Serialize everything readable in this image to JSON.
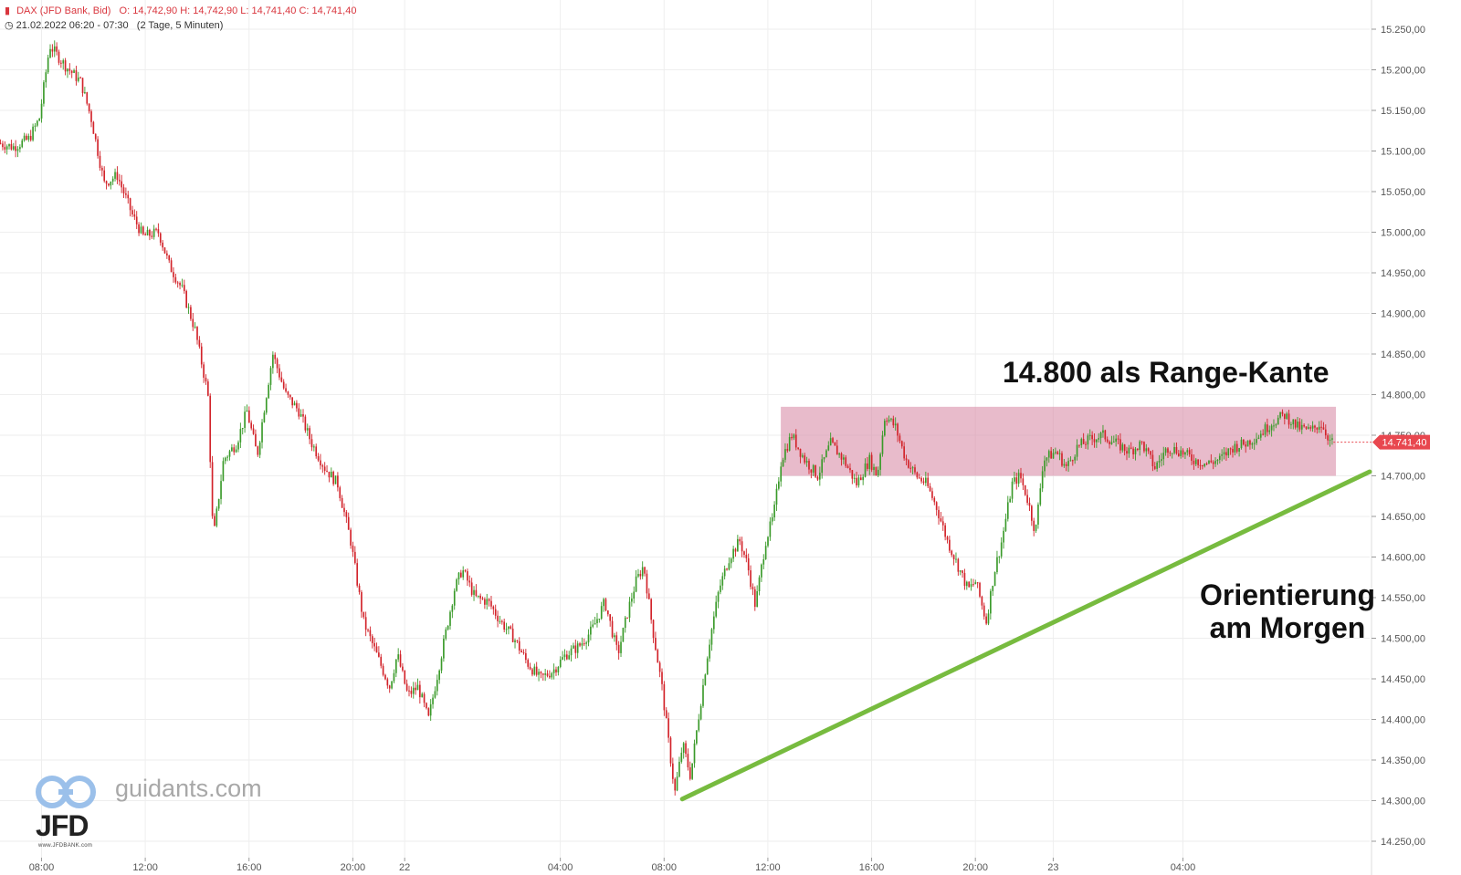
{
  "header": {
    "instrument": "DAX (JFD Bank, Bid)",
    "ohlc": "O: 14,742,90  H: 14,742,90  L: 14,741,40  C: 14,741,40",
    "period": "21.02.2022 06:20 - 07:30",
    "interval": "(2 Tage, 5 Minuten)"
  },
  "annotations": {
    "range_label": "14.800 als Range-Kante",
    "orientation_line1": "Orientierung",
    "orientation_line2": "am Morgen"
  },
  "watermark": {
    "site": "guidants.com",
    "brand": "JFD",
    "brand_sub": "www.JFDBANK.com"
  },
  "colors": {
    "up": "#3a9a2a",
    "down": "#d2232a",
    "grid": "#eeeeee",
    "axis_text": "#555555",
    "range_fill": "#d88aa6",
    "trendline": "#77bb3f",
    "last_price_bg": "#e8474f"
  },
  "chart_data": {
    "type": "candlestick",
    "title": "DAX (JFD Bank, Bid)",
    "interval": "5 Minuten",
    "last_price": 14741.4,
    "last_price_label": "14.741,40",
    "y_axis": {
      "min": 14250,
      "max": 15250,
      "ticks": [
        15250,
        15200,
        15150,
        15100,
        15050,
        15000,
        14950,
        14900,
        14850,
        14800,
        14750,
        14700,
        14650,
        14600,
        14550,
        14500,
        14450,
        14400,
        14350,
        14300,
        14250
      ],
      "tick_labels": [
        "15.250,00",
        "15.200,00",
        "15.150,00",
        "15.100,00",
        "15.050,00",
        "15.000,00",
        "14.950,00",
        "14.900,00",
        "14.850,00",
        "14.800,00",
        "14.750,00",
        "14.700,00",
        "14.650,00",
        "14.600,00",
        "14.550,00",
        "14.500,00",
        "14.450,00",
        "14.400,00",
        "14.350,00",
        "14.300,00",
        "14.250,00"
      ]
    },
    "x_axis": {
      "labels": [
        "08:00",
        "12:00",
        "16:00",
        "20:00",
        "22",
        "04:00",
        "08:00",
        "12:00",
        "16:00",
        "20:00",
        "23",
        "04:00"
      ],
      "label_hours": [
        8,
        12,
        16,
        20,
        22,
        28,
        32,
        36,
        40,
        44,
        47,
        52
      ],
      "start_hour": 6.4,
      "end_hour": 59.2
    },
    "price_path": [
      [
        6.4,
        15110
      ],
      [
        7.0,
        15105
      ],
      [
        7.6,
        15115
      ],
      [
        8.0,
        15140
      ],
      [
        8.4,
        15230
      ],
      [
        9.0,
        15205
      ],
      [
        9.6,
        15185
      ],
      [
        10.0,
        15140
      ],
      [
        10.5,
        15060
      ],
      [
        11.0,
        15070
      ],
      [
        11.6,
        15020
      ],
      [
        12.0,
        14995
      ],
      [
        12.6,
        15000
      ],
      [
        13.0,
        14960
      ],
      [
        13.5,
        14930
      ],
      [
        14.0,
        14880
      ],
      [
        14.5,
        14800
      ],
      [
        14.7,
        14620
      ],
      [
        15.1,
        14720
      ],
      [
        15.6,
        14740
      ],
      [
        16.0,
        14780
      ],
      [
        16.4,
        14725
      ],
      [
        16.7,
        14790
      ],
      [
        17.0,
        14850
      ],
      [
        17.5,
        14800
      ],
      [
        18.0,
        14780
      ],
      [
        18.5,
        14740
      ],
      [
        19.0,
        14710
      ],
      [
        19.5,
        14690
      ],
      [
        20.0,
        14620
      ],
      [
        20.5,
        14520
      ],
      [
        21.0,
        14480
      ],
      [
        21.5,
        14440
      ],
      [
        21.8,
        14480
      ],
      [
        22.2,
        14430
      ],
      [
        22.6,
        14440
      ],
      [
        23.0,
        14400
      ],
      [
        23.5,
        14480
      ],
      [
        24.0,
        14560
      ],
      [
        24.3,
        14585
      ],
      [
        24.8,
        14550
      ],
      [
        25.3,
        14545
      ],
      [
        25.8,
        14520
      ],
      [
        26.3,
        14500
      ],
      [
        26.8,
        14470
      ],
      [
        27.3,
        14450
      ],
      [
        27.8,
        14460
      ],
      [
        28.3,
        14480
      ],
      [
        28.8,
        14490
      ],
      [
        29.3,
        14510
      ],
      [
        29.8,
        14545
      ],
      [
        30.3,
        14480
      ],
      [
        30.7,
        14535
      ],
      [
        31.0,
        14570
      ],
      [
        31.3,
        14590
      ],
      [
        31.6,
        14520
      ],
      [
        32.0,
        14440
      ],
      [
        32.3,
        14360
      ],
      [
        32.5,
        14310
      ],
      [
        32.8,
        14370
      ],
      [
        33.1,
        14330
      ],
      [
        33.4,
        14400
      ],
      [
        33.8,
        14490
      ],
      [
        34.2,
        14560
      ],
      [
        34.6,
        14600
      ],
      [
        35.0,
        14620
      ],
      [
        35.3,
        14590
      ],
      [
        35.6,
        14540
      ],
      [
        36.0,
        14620
      ],
      [
        36.3,
        14650
      ],
      [
        36.6,
        14720
      ],
      [
        37.0,
        14750
      ],
      [
        37.5,
        14720
      ],
      [
        38.0,
        14700
      ],
      [
        38.5,
        14740
      ],
      [
        39.0,
        14720
      ],
      [
        39.5,
        14690
      ],
      [
        40.0,
        14720
      ],
      [
        40.3,
        14700
      ],
      [
        40.6,
        14775
      ],
      [
        41.0,
        14760
      ],
      [
        41.4,
        14720
      ],
      [
        41.8,
        14700
      ],
      [
        42.2,
        14690
      ],
      [
        42.6,
        14660
      ],
      [
        43.0,
        14620
      ],
      [
        43.4,
        14590
      ],
      [
        43.8,
        14560
      ],
      [
        44.1,
        14570
      ],
      [
        44.5,
        14520
      ],
      [
        44.8,
        14580
      ],
      [
        45.1,
        14620
      ],
      [
        45.5,
        14690
      ],
      [
        45.8,
        14700
      ],
      [
        46.1,
        14670
      ],
      [
        46.4,
        14630
      ],
      [
        46.7,
        14720
      ],
      [
        47.2,
        14730
      ],
      [
        47.6,
        14710
      ],
      [
        48.0,
        14735
      ],
      [
        48.5,
        14745
      ],
      [
        49.0,
        14750
      ],
      [
        49.5,
        14740
      ],
      [
        50.0,
        14730
      ],
      [
        50.5,
        14740
      ],
      [
        51.0,
        14710
      ],
      [
        51.5,
        14735
      ],
      [
        52.0,
        14730
      ],
      [
        52.5,
        14720
      ],
      [
        53.0,
        14715
      ],
      [
        53.5,
        14720
      ],
      [
        54.0,
        14735
      ],
      [
        54.5,
        14740
      ],
      [
        55.0,
        14750
      ],
      [
        55.5,
        14765
      ],
      [
        56.0,
        14775
      ],
      [
        56.5,
        14760
      ],
      [
        57.0,
        14755
      ],
      [
        57.4,
        14765
      ],
      [
        57.8,
        14741
      ]
    ],
    "range_box": {
      "from_hour": 36.5,
      "to_hour": 57.9,
      "price_low": 14700,
      "price_high": 14785
    },
    "trendline": {
      "from": [
        32.7,
        14302
      ],
      "to": [
        59.2,
        14705
      ]
    }
  }
}
